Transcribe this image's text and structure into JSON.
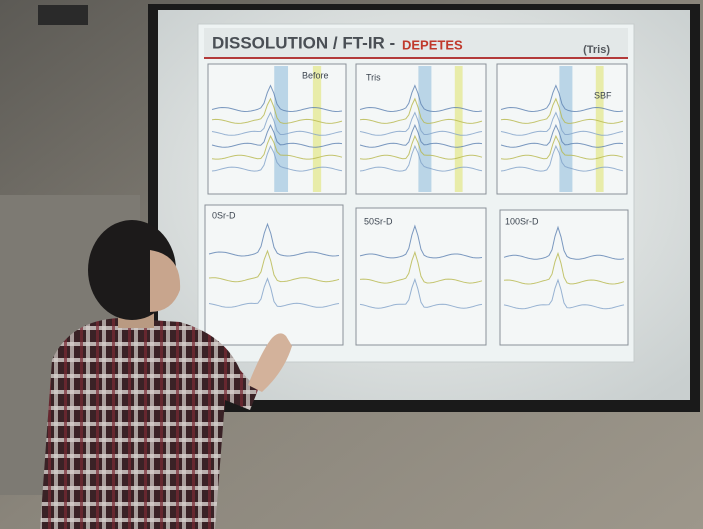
{
  "slide": {
    "title_main": "DISSOLUTION / FT-IR -",
    "title_accent": "DEPETES",
    "tag": "(Tris)",
    "panels": [
      "Before",
      "Tris",
      "SBF",
      "0Sr-D",
      "50Sr-D",
      "100Sr-D"
    ]
  }
}
